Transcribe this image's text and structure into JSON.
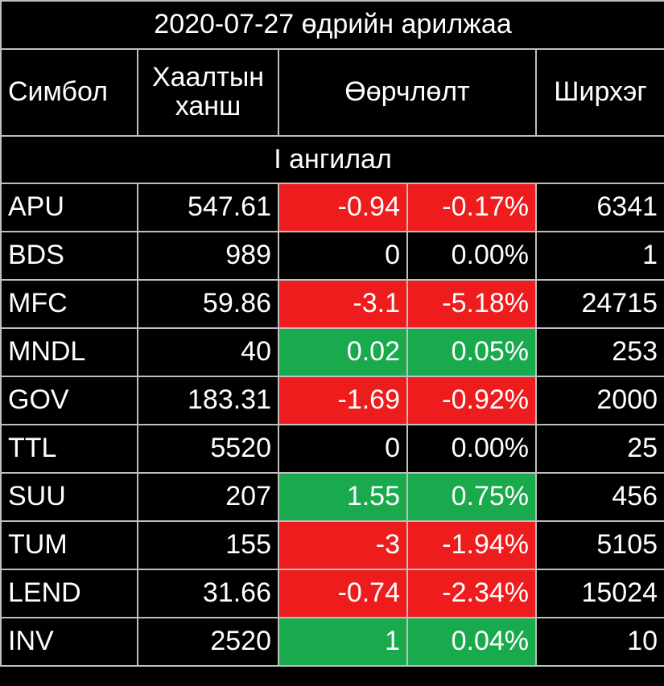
{
  "title": "2020-07-27 өдрийн арилжаа",
  "header": [
    "Симбол",
    "Хаалтын ханш",
    "Өөрчлөлт",
    "Ширхэг"
  ],
  "section": "I ангилал",
  "rows": [
    {
      "cells": [
        "APU",
        "547.61",
        "-0.94",
        "-0.17%",
        "6341"
      ],
      "color": "#ee1c1c"
    },
    {
      "cells": [
        "BDS",
        "989",
        "0",
        "0.00%",
        "1"
      ],
      "color": "#000000"
    },
    {
      "cells": [
        "MFC",
        "59.86",
        "-3.1",
        "-5.18%",
        "24715"
      ],
      "color": "#ee1c1c"
    },
    {
      "cells": [
        "MNDL",
        "40",
        "0.02",
        "0.05%",
        "253"
      ],
      "color": "#1aaa4e"
    },
    {
      "cells": [
        "GOV",
        "183.31",
        "-1.69",
        "-0.92%",
        "2000"
      ],
      "color": "#ee1c1c"
    },
    {
      "cells": [
        "TTL",
        "5520",
        "0",
        "0.00%",
        "25"
      ],
      "color": "#000000"
    },
    {
      "cells": [
        "SUU",
        "207",
        "1.55",
        "0.75%",
        "456"
      ],
      "color": "#1aaa4e"
    },
    {
      "cells": [
        "TUM",
        "155",
        "-3",
        "-1.94%",
        "5105"
      ],
      "color": "#ee1c1c"
    },
    {
      "cells": [
        "LEND",
        "31.66",
        "-0.74",
        "-2.34%",
        "15024"
      ],
      "color": "#ee1c1c"
    },
    {
      "cells": [
        "INV",
        "2520",
        "1",
        "0.04%",
        "10"
      ],
      "color": "#1aaa4e"
    }
  ]
}
